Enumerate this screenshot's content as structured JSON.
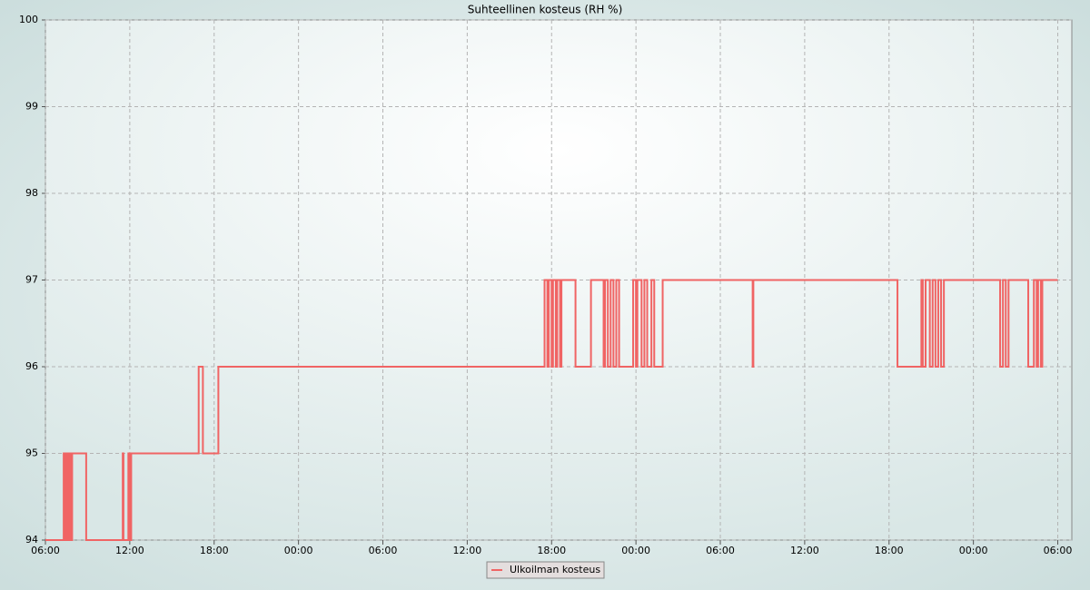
{
  "chart_data": {
    "type": "line",
    "title": "Suhteellinen kosteus (RH %)",
    "x": [
      0,
      1.3,
      1.3,
      1.4,
      1.4,
      1.5,
      1.5,
      1.6,
      1.6,
      1.7,
      1.7,
      1.8,
      1.8,
      1.9,
      1.9,
      2.9,
      2.9,
      5.5,
      5.5,
      5.55,
      5.55,
      5.9,
      5.9,
      6.0,
      6.0,
      6.1,
      6.1,
      10.9,
      10.9,
      11.2,
      11.2,
      12.3,
      12.3,
      35.5,
      35.5,
      35.7,
      35.7,
      35.8,
      35.8,
      36.0,
      36.0,
      36.1,
      36.1,
      36.3,
      36.3,
      36.4,
      36.4,
      36.6,
      36.6,
      36.7,
      36.7,
      37.7,
      37.7,
      38.8,
      38.8,
      39.7,
      39.7,
      39.8,
      39.8,
      40.0,
      40.0,
      40.2,
      40.2,
      40.4,
      40.4,
      40.6,
      40.6,
      40.8,
      40.8,
      41.8,
      41.8,
      42.0,
      42.0,
      42.1,
      42.1,
      42.4,
      42.4,
      42.6,
      42.6,
      42.8,
      42.8,
      43.1,
      43.1,
      43.3,
      43.3,
      43.9,
      43.9,
      50.3,
      50.3,
      50.35,
      50.35,
      60.6,
      60.6,
      62.3,
      62.3,
      62.4,
      62.4,
      62.6,
      62.6,
      62.9,
      62.9,
      63.1,
      63.1,
      63.3,
      63.3,
      63.5,
      63.5,
      63.7,
      63.7,
      63.9,
      63.9,
      67.9,
      67.9,
      68.1,
      68.1,
      68.3,
      68.3,
      68.5,
      68.5,
      69.9,
      69.9,
      70.3,
      70.3,
      70.5,
      70.5,
      70.6,
      70.6,
      70.8,
      70.8,
      70.9,
      70.9,
      72.0
    ],
    "series": [
      {
        "name": "Ulkoilman kosteus",
        "color": "#f06464",
        "values": [
          94,
          94,
          95,
          95,
          94,
          94,
          95,
          95,
          94,
          94,
          95,
          95,
          94,
          94,
          95,
          95,
          94,
          94,
          95,
          95,
          94,
          94,
          95,
          95,
          94,
          94,
          95,
          95,
          96,
          96,
          95,
          95,
          96,
          96,
          97,
          97,
          96,
          96,
          97,
          97,
          96,
          96,
          97,
          97,
          96,
          96,
          97,
          97,
          96,
          96,
          97,
          97,
          96,
          96,
          97,
          97,
          96,
          96,
          97,
          97,
          96,
          96,
          97,
          97,
          96,
          96,
          97,
          97,
          96,
          96,
          97,
          97,
          96,
          96,
          97,
          97,
          96,
          96,
          97,
          97,
          96,
          96,
          97,
          97,
          96,
          96,
          97,
          97,
          96,
          96,
          97,
          97,
          96,
          96,
          97,
          97,
          96,
          96,
          97,
          97,
          96,
          96,
          97,
          97,
          96,
          96,
          97,
          97,
          96,
          96,
          97,
          97,
          96,
          96,
          97,
          97,
          96,
          96,
          97,
          97,
          96,
          96,
          97,
          97,
          96,
          96,
          97,
          97,
          96,
          96,
          97,
          97
        ]
      }
    ],
    "xlim": [
      0,
      73
    ],
    "xticks": [
      {
        "value": 0,
        "label": "06:00"
      },
      {
        "value": 6,
        "label": "12:00"
      },
      {
        "value": 12,
        "label": "18:00"
      },
      {
        "value": 18,
        "label": "00:00"
      },
      {
        "value": 24,
        "label": "06:00"
      },
      {
        "value": 30,
        "label": "12:00"
      },
      {
        "value": 36,
        "label": "18:00"
      },
      {
        "value": 42,
        "label": "00:00"
      },
      {
        "value": 48,
        "label": "06:00"
      },
      {
        "value": 54,
        "label": "12:00"
      },
      {
        "value": 60,
        "label": "18:00"
      },
      {
        "value": 66,
        "label": "00:00"
      },
      {
        "value": 72,
        "label": "06:00"
      }
    ],
    "ylim": [
      94,
      100
    ],
    "yticks": [
      94,
      95,
      96,
      97,
      98,
      99,
      100
    ],
    "grid": true,
    "legend": "bottom"
  }
}
